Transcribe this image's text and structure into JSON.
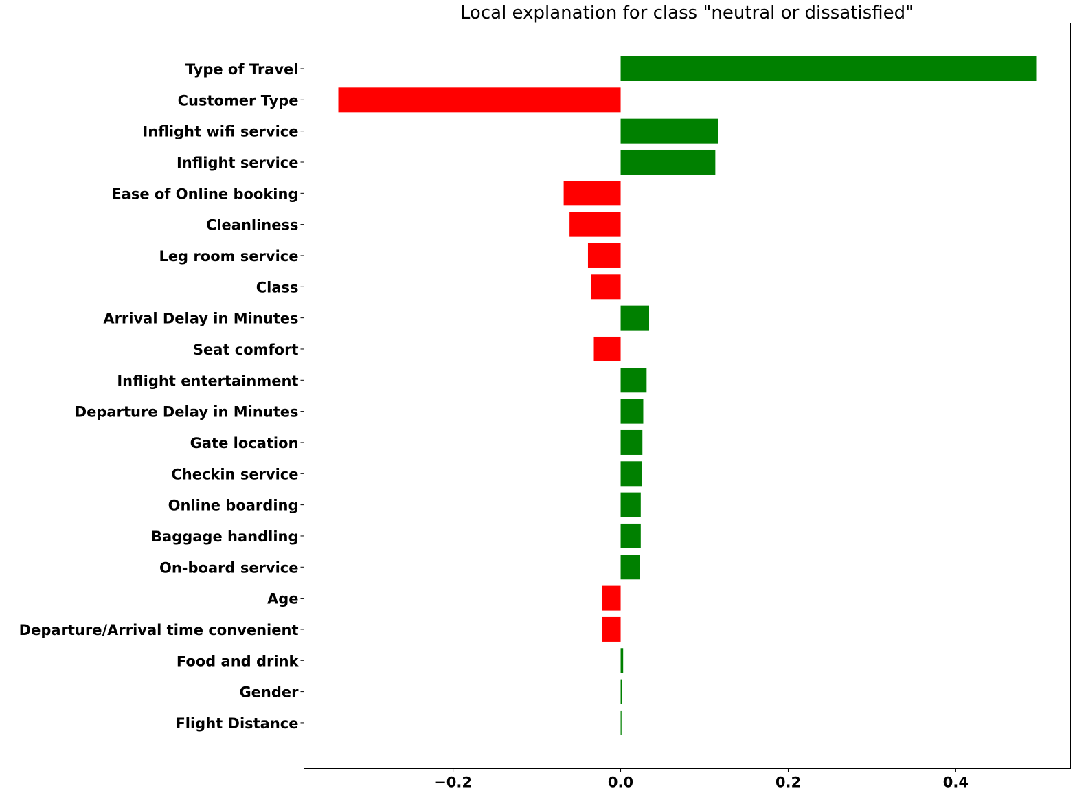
{
  "chart_data": {
    "type": "bar",
    "orientation": "horizontal",
    "title": "Local explanation for class \"neutral or dissatisfied\"",
    "xlabel": "",
    "ylabel": "",
    "xlim": [
      -0.378,
      0.537
    ],
    "x_ticks": [
      -0.2,
      0.0,
      0.2,
      0.4
    ],
    "x_tick_labels": [
      "−0.2",
      "0.0",
      "0.2",
      "0.4"
    ],
    "grid": false,
    "colors": {
      "positive": "#008000",
      "negative": "#ff0000",
      "axis": "#000000"
    },
    "categories": [
      "Type of Travel",
      "Customer Type",
      "Inflight wifi service",
      "Inflight service",
      "Ease of Online booking",
      "Cleanliness",
      "Leg room service",
      "Class",
      "Arrival Delay in Minutes",
      "Seat comfort",
      "Inflight entertainment",
      "Departure Delay in Minutes",
      "Gate location",
      "Checkin service",
      "Online boarding",
      "Baggage handling",
      "On-board service",
      "Age",
      "Departure/Arrival time convenient",
      "Food and drink",
      "Gender",
      "Flight Distance"
    ],
    "values": [
      0.496,
      -0.337,
      0.116,
      0.113,
      -0.068,
      -0.061,
      -0.039,
      -0.035,
      0.034,
      -0.032,
      0.031,
      0.027,
      0.026,
      0.025,
      0.024,
      0.024,
      0.023,
      -0.022,
      -0.022,
      0.003,
      0.002,
      0.001
    ]
  }
}
